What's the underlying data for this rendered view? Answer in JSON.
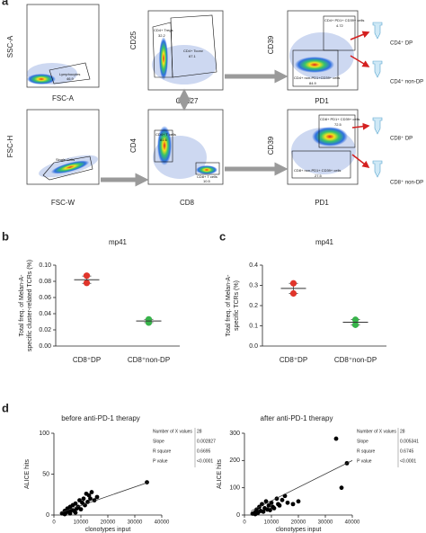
{
  "panel_labels": [
    "a",
    "b",
    "c",
    "d"
  ],
  "flow": {
    "plots": [
      {
        "ylabel": "SSC-A",
        "xlabel": "FSC-A",
        "gates": [
          {
            "name": "Lymphocytes",
            "value": 46.9
          }
        ]
      },
      {
        "ylabel": "CD25",
        "xlabel": "CD127",
        "gates": [
          {
            "name": "CD4+ Tregs",
            "value": 32.2
          },
          {
            "name": "CD4+ Tconv",
            "value": 67.1
          }
        ]
      },
      {
        "ylabel": "CD39",
        "xlabel": "PD1",
        "gates": [
          {
            "name": "CD4+ PD1+ CD39+ cells",
            "value": 4.72
          },
          {
            "name": "CD4+ non-PD1+CD39+ cells",
            "value": 84.9
          }
        ]
      },
      {
        "ylabel": "FSC-H",
        "xlabel": "FSC-W",
        "gates": [
          {
            "name": "Single Cells"
          }
        ]
      },
      {
        "ylabel": "CD4",
        "xlabel": "CD8",
        "gates": [
          {
            "name": "CD4+ T cells",
            "value": 81.6
          },
          {
            "name": "CD8+ T cells",
            "value": 10.5
          }
        ]
      },
      {
        "ylabel": "CD39",
        "xlabel": "PD1",
        "gates": [
          {
            "name": "CD8+ PD1+ CD39+ cells",
            "value": 72.5
          },
          {
            "name": "CD8+ non-PD1+ CD39+ cells",
            "value": 27.5
          }
        ]
      }
    ],
    "tubes": [
      "CD4⁺ DP",
      "CD4⁺ non-DP",
      "CD8⁺ DP",
      "CD8⁺ non-DP"
    ]
  },
  "chart_data": [
    {
      "type": "dot",
      "title": "mp41",
      "ylabel": [
        "Total freq. of Melan-A-",
        "specific cluster-related TCRs (%)"
      ],
      "categories": [
        "CD8⁺DP",
        "CD8⁺non-DP"
      ],
      "values": [
        [
          0.087,
          0.078
        ],
        [
          0.033,
          0.029
        ]
      ],
      "means": [
        0.082,
        0.031
      ],
      "errors": [
        0.0045,
        0.002
      ],
      "colors": [
        "#e0352b",
        "#37b34a"
      ],
      "ylim": [
        0,
        0.1
      ],
      "yticks": [
        {
          "value": 0,
          "label": "0.00"
        },
        {
          "value": 0.02,
          "label": "0.02"
        },
        {
          "value": 0.04,
          "label": "0.04"
        },
        {
          "value": 0.06,
          "label": "0.06"
        },
        {
          "value": 0.08,
          "label": "0.08"
        },
        {
          "value": 0.1,
          "label": "0.10"
        }
      ]
    },
    {
      "type": "dot",
      "title": "mp41",
      "ylabel": [
        "Total freq. of Melan-A-",
        "specific TCRs (%)"
      ],
      "categories": [
        "CD8⁺DP",
        "CD8⁺non-DP"
      ],
      "values": [
        [
          0.31,
          0.26
        ],
        [
          0.13,
          0.105
        ]
      ],
      "means": [
        0.285,
        0.118
      ],
      "errors": [
        0.025,
        0.013
      ],
      "colors": [
        "#e0352b",
        "#37b34a"
      ],
      "ylim": [
        0,
        0.4
      ],
      "yticks": [
        {
          "value": 0,
          "label": "0.0"
        },
        0.1,
        0.2,
        0.3,
        {
          "value": 0.4,
          "label": "0.4"
        }
      ]
    },
    {
      "type": "scatter",
      "title": "before anti-PD-1 therapy",
      "xlabel": "clonotypes input",
      "ylabel": "ALICE hits",
      "x": [
        3000,
        4000,
        4500,
        5000,
        5500,
        6000,
        6500,
        7000,
        7500,
        8000,
        8500,
        9000,
        9500,
        10000,
        10500,
        11000,
        11500,
        12000,
        12500,
        13000,
        13500,
        14000,
        15000,
        16000,
        4000,
        6000,
        8000,
        34500
      ],
      "y": [
        2,
        5,
        3,
        8,
        4,
        10,
        6,
        12,
        5,
        14,
        8,
        10,
        18,
        7,
        15,
        20,
        12,
        26,
        16,
        24,
        20,
        28,
        18,
        22,
        1,
        2,
        3,
        40
      ],
      "fit": {
        "x": [
          2500,
          35000
        ],
        "y": [
          3,
          40
        ]
      },
      "stats": [
        {
          "label": "Number of X values",
          "value": 28
        },
        {
          "label": "Slope",
          "value": 0.002827
        },
        {
          "label": "R square",
          "value": 0.6695
        },
        {
          "label": "P value",
          "value": "<0.0001"
        }
      ],
      "color": "#000000",
      "xlim": [
        0,
        40000
      ],
      "xticks": [
        0,
        10000,
        20000,
        30000,
        40000
      ],
      "ylim": [
        0,
        100
      ],
      "yticks": [
        0,
        50,
        100
      ]
    },
    {
      "type": "scatter",
      "title": "after anti-PD-1 therapy",
      "xlabel": "clonotypes input",
      "ylabel": "ALICE hits",
      "x": [
        3000,
        4000,
        4500,
        5000,
        5500,
        6000,
        6500,
        7000,
        7500,
        8000,
        8500,
        9000,
        9500,
        10000,
        10500,
        11000,
        12000,
        12500,
        13000,
        14000,
        15000,
        16000,
        18000,
        20000,
        4000,
        34000,
        36000,
        38000
      ],
      "y": [
        5,
        10,
        20,
        8,
        30,
        15,
        40,
        12,
        25,
        50,
        20,
        35,
        18,
        45,
        30,
        25,
        60,
        40,
        35,
        55,
        70,
        45,
        40,
        50,
        3,
        280,
        100,
        190
      ],
      "fit": {
        "x": [
          2500,
          40000
        ],
        "y": [
          15,
          200
        ]
      },
      "stats": [
        {
          "label": "Number of X values",
          "value": 28
        },
        {
          "label": "Slope",
          "value": 0.005341
        },
        {
          "label": "R square",
          "value": 0.6745
        },
        {
          "label": "P value",
          "value": "<0.0001"
        }
      ],
      "color": "#000000",
      "xlim": [
        0,
        40000
      ],
      "xticks": [
        0,
        10000,
        20000,
        30000,
        40000
      ],
      "ylim": [
        0,
        300
      ],
      "yticks": [
        0,
        100,
        200,
        300
      ]
    }
  ]
}
